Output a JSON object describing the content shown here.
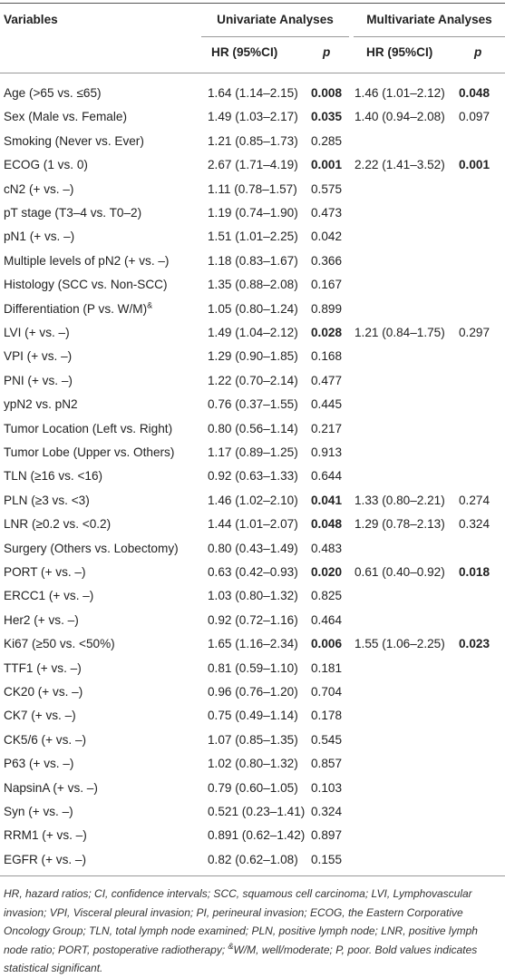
{
  "header": {
    "variables": "Variables",
    "univariate": "Univariate Analyses",
    "multivariate": "Multivariate Analyses",
    "uni_hr": "HR (95%CI)",
    "uni_p": "p",
    "multi_hr": "HR (95%CI)",
    "multi_p": "p"
  },
  "table": {
    "rows": [
      {
        "cells": [
          "Age (>65 vs. ≤65)",
          "1.64 (1.14–2.15)",
          "0.008",
          "1.46 (1.01–2.12)",
          "0.048"
        ],
        "bold": [
          2,
          4
        ]
      },
      {
        "cells": [
          "Sex (Male vs. Female)",
          "1.49 (1.03–2.17)",
          "0.035",
          "1.40 (0.94–2.08)",
          "0.097"
        ],
        "bold": [
          2
        ]
      },
      {
        "cells": [
          "Smoking (Never vs. Ever)",
          "1.21 (0.85–1.73)",
          "0.285"
        ]
      },
      {
        "cells": [
          "ECOG (1 vs. 0)",
          "2.67 (1.71–4.19)",
          "0.001",
          "2.22 (1.41–3.52)",
          "0.001"
        ],
        "bold": [
          2,
          4
        ]
      },
      {
        "cells": [
          "cN2 (+ vs. –)",
          "1.11 (0.78–1.57)",
          "0.575"
        ]
      },
      {
        "cells": [
          "pT stage (T3–4 vs. T0–2)",
          "1.19 (0.74–1.90)",
          "0.473"
        ]
      },
      {
        "cells": [
          "pN1 (+ vs. –)",
          "1.51 (1.01–2.25)",
          "0.042"
        ]
      },
      {
        "cells": [
          "Multiple levels of pN2 (+ vs. –)",
          "1.18 (0.83–1.67)",
          "0.366"
        ]
      },
      {
        "cells": [
          "Histology (SCC vs. Non-SCC)",
          "1.35 (0.88–2.08)",
          "0.167"
        ]
      },
      {
        "cells": [
          "Differentiation (P vs. W/M)",
          "1.05 (0.80–1.24)",
          "0.899"
        ],
        "sup": "&"
      },
      {
        "cells": [
          "LVI (+ vs. –)",
          "1.49 (1.04–2.12)",
          "0.028",
          "1.21 (0.84–1.75)",
          "0.297"
        ],
        "bold": [
          2
        ]
      },
      {
        "cells": [
          "VPI (+ vs. –)",
          "1.29 (0.90–1.85)",
          "0.168"
        ]
      },
      {
        "cells": [
          "PNI (+ vs. –)",
          "1.22 (0.70–2.14)",
          "0.477"
        ]
      },
      {
        "cells": [
          "ypN2 vs. pN2",
          "0.76 (0.37–1.55)",
          "0.445"
        ]
      },
      {
        "cells": [
          "Tumor Location (Left vs. Right)",
          "0.80 (0.56–1.14)",
          "0.217"
        ]
      },
      {
        "cells": [
          "Tumor Lobe (Upper vs. Others)",
          "1.17 (0.89–1.25)",
          "0.913"
        ]
      },
      {
        "cells": [
          "TLN (≥16 vs. <16)",
          "0.92 (0.63–1.33)",
          "0.644"
        ]
      },
      {
        "cells": [
          "PLN (≥3 vs. <3)",
          "1.46 (1.02–2.10)",
          "0.041",
          "1.33 (0.80–2.21)",
          "0.274"
        ],
        "bold": [
          2
        ]
      },
      {
        "cells": [
          "LNR (≥0.2 vs. <0.2)",
          "1.44 (1.01–2.07)",
          "0.048",
          "1.29 (0.78–2.13)",
          "0.324"
        ],
        "bold": [
          2
        ]
      },
      {
        "cells": [
          "Surgery (Others vs. Lobectomy)",
          "0.80 (0.43–1.49)",
          "0.483"
        ]
      },
      {
        "cells": [
          "PORT (+ vs. –)",
          "0.63 (0.42–0.93)",
          "0.020",
          "0.61 (0.40–0.92)",
          "0.018"
        ],
        "bold": [
          2,
          4
        ]
      },
      {
        "cells": [
          "ERCC1 (+ vs. –)",
          "1.03 (0.80–1.32)",
          "0.825"
        ]
      },
      {
        "cells": [
          "Her2 (+ vs. –)",
          "0.92 (0.72–1.16)",
          "0.464"
        ]
      },
      {
        "cells": [
          "Ki67 (≥50 vs. <50%)",
          "1.65 (1.16–2.34)",
          "0.006",
          "1.55 (1.06–2.25)",
          "0.023"
        ],
        "bold": [
          2,
          4
        ]
      },
      {
        "cells": [
          "TTF1 (+ vs. –)",
          "0.81 (0.59–1.10)",
          "0.181"
        ]
      },
      {
        "cells": [
          "CK20 (+ vs. –)",
          "0.96 (0.76–1.20)",
          "0.704"
        ]
      },
      {
        "cells": [
          "CK7 (+ vs. –)",
          "0.75 (0.49–1.14)",
          "0.178"
        ]
      },
      {
        "cells": [
          "CK5/6 (+ vs. –)",
          "1.07 (0.85–1.35)",
          "0.545"
        ]
      },
      {
        "cells": [
          "P63 (+ vs. –)",
          "1.02 (0.80–1.32)",
          "0.857"
        ]
      },
      {
        "cells": [
          "NapsinA (+ vs. –)",
          "0.79 (0.60–1.05)",
          "0.103"
        ]
      },
      {
        "cells": [
          "Syn (+ vs. –)",
          "0.521 (0.23–1.41)",
          "0.324"
        ]
      },
      {
        "cells": [
          "RRM1 (+ vs. –)",
          "0.891 (0.62–1.42)",
          "0.897"
        ]
      },
      {
        "cells": [
          "EGFR (+ vs. –)",
          "0.82 (0.62–1.08)",
          "0.155"
        ]
      }
    ]
  },
  "footnote": [
    "HR, hazard ratios; CI, confidence intervals; SCC, squamous cell carcinoma; LVI, Lymphovascular invasion; VPI, Visceral pleural invasion; PI, perineural invasion; ECOG, the Eastern Corporative Oncology Group; TLN, total lymph node examined; PLN, positive lymph node; LNR, positive lymph node ratio; PORT, postoperative radiotherapy; ",
    "&",
    "W/M, well/moderate; P, poor. Bold values indicates statistical significant."
  ]
}
